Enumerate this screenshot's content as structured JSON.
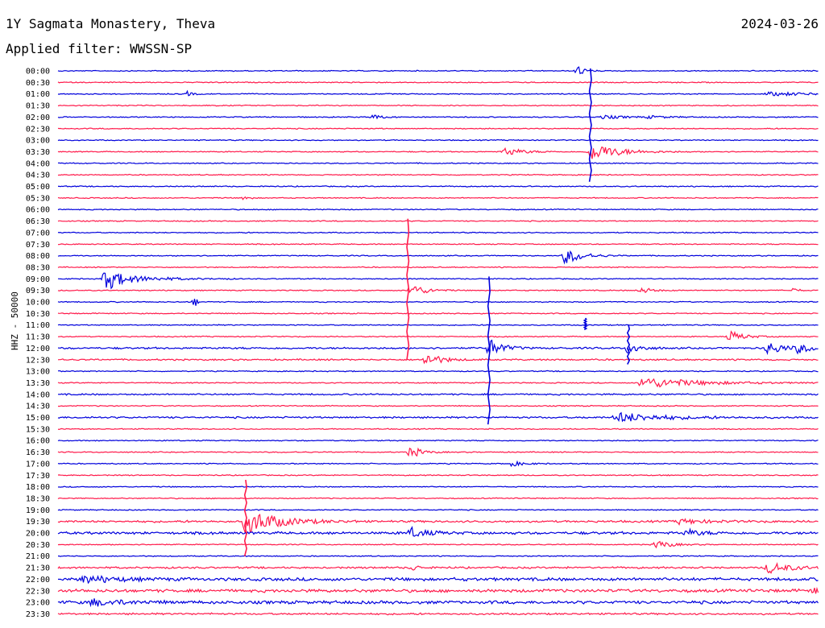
{
  "header": {
    "station": "1Y Sagmata Monastery, Theva",
    "date": "2024-03-26",
    "filter": "Applied filter: WWSSN-SP"
  },
  "y_label": "HHZ - 50000",
  "colors": {
    "odd": "#0000dc",
    "even": "#ff1a4b",
    "text": "#000000"
  },
  "chart_data": {
    "type": "line",
    "title": "1Y Sagmata Monastery, Theva",
    "ylabel": "HHZ - 50000",
    "x_unit": "minutes within 30-min row",
    "rows": [
      "00:00",
      "00:30",
      "01:00",
      "01:30",
      "02:00",
      "02:30",
      "03:00",
      "03:30",
      "04:00",
      "04:30",
      "05:00",
      "05:30",
      "06:00",
      "06:30",
      "07:00",
      "07:30",
      "08:00",
      "08:30",
      "09:00",
      "09:30",
      "10:00",
      "10:30",
      "11:00",
      "11:30",
      "12:00",
      "12:30",
      "13:00",
      "13:30",
      "14:00",
      "14:30",
      "15:00",
      "15:30",
      "16:00",
      "16:30",
      "17:00",
      "17:30",
      "18:00",
      "18:30",
      "19:00",
      "19:30",
      "20:00",
      "20:30",
      "21:00",
      "21:30",
      "22:00",
      "22:30",
      "23:00",
      "23:30"
    ],
    "events": [
      {
        "row": "00:00",
        "t": 20.5,
        "amp": 1.2,
        "dur": 0.2
      },
      {
        "row": "01:00",
        "t": 5.1,
        "amp": 0.4,
        "dur": 0.2
      },
      {
        "row": "01:00",
        "t": 28.0,
        "amp": 0.3,
        "dur": 2.0
      },
      {
        "row": "02:00",
        "t": 12.4,
        "amp": 0.4,
        "dur": 0.4
      },
      {
        "row": "02:00",
        "t": 21.5,
        "amp": 0.3,
        "dur": 0.8
      },
      {
        "row": "02:00",
        "t": 23.3,
        "amp": 0.2,
        "dur": 0.8
      },
      {
        "row": "03:30",
        "t": 17.6,
        "amp": 0.8,
        "dur": 0.6
      },
      {
        "row": "03:30",
        "t": 21.0,
        "amp": 1.6,
        "dur": 1.0
      },
      {
        "row": "05:30",
        "t": 7.3,
        "amp": 0.4,
        "dur": 0.2
      },
      {
        "row": "08:00",
        "t": 20.0,
        "amp": 1.5,
        "dur": 0.6
      },
      {
        "row": "09:00",
        "t": 1.8,
        "amp": 1.3,
        "dur": 1.3
      },
      {
        "row": "09:00",
        "t": 2.0,
        "amp": 1.0,
        "dur": 0.2
      },
      {
        "row": "09:30",
        "t": 13.9,
        "amp": 1.3,
        "dur": 0.5
      },
      {
        "row": "09:30",
        "t": 23.0,
        "amp": 0.6,
        "dur": 0.4
      },
      {
        "row": "09:30",
        "t": 29.0,
        "amp": 0.4,
        "dur": 0.2
      },
      {
        "row": "10:00",
        "t": 5.4,
        "amp": 1.0,
        "dur": 0.1
      },
      {
        "row": "11:30",
        "t": 26.5,
        "amp": 1.0,
        "dur": 0.5
      },
      {
        "row": "12:00",
        "t": 17.0,
        "amp": 1.6,
        "dur": 0.5
      },
      {
        "row": "12:00",
        "t": 22.5,
        "amp": 1.2,
        "dur": 0.4
      },
      {
        "row": "12:00",
        "t": 28.0,
        "amp": 1.2,
        "dur": 0.6
      },
      {
        "row": "12:00",
        "t": 29.2,
        "amp": 0.8,
        "dur": 0.4
      },
      {
        "row": "12:30",
        "t": 14.5,
        "amp": 1.1,
        "dur": 0.6
      },
      {
        "row": "13:30",
        "t": 23.0,
        "amp": 1.0,
        "dur": 2.0
      },
      {
        "row": "15:00",
        "t": 22.0,
        "amp": 0.9,
        "dur": 1.6
      },
      {
        "row": "16:30",
        "t": 13.9,
        "amp": 1.1,
        "dur": 0.4
      },
      {
        "row": "17:00",
        "t": 17.9,
        "amp": 0.4,
        "dur": 0.5
      },
      {
        "row": "19:30",
        "t": 7.4,
        "amp": 2.2,
        "dur": 1.2
      },
      {
        "row": "19:30",
        "t": 24.5,
        "amp": 0.4,
        "dur": 1.0
      },
      {
        "row": "20:00",
        "t": 13.9,
        "amp": 0.9,
        "dur": 0.6
      },
      {
        "row": "20:00",
        "t": 24.8,
        "amp": 0.6,
        "dur": 0.5
      },
      {
        "row": "20:30",
        "t": 23.6,
        "amp": 0.8,
        "dur": 0.5
      },
      {
        "row": "21:30",
        "t": 14.0,
        "amp": 0.6,
        "dur": 0.2
      },
      {
        "row": "21:30",
        "t": 28.0,
        "amp": 1.0,
        "dur": 0.8
      },
      {
        "row": "22:00",
        "t": 1.0,
        "amp": 0.6,
        "dur": 1.2
      },
      {
        "row": "22:30",
        "t": 29.8,
        "amp": 0.6,
        "dur": 0.4
      },
      {
        "row": "23:00",
        "t": 1.3,
        "amp": 0.6,
        "dur": 1.2
      }
    ],
    "spikes": [
      {
        "row": "03:00",
        "t": 21.0,
        "rows_up": 6.2,
        "rows_down": 3.6
      },
      {
        "row": "09:30",
        "t": 13.8,
        "rows_up": 6.2,
        "rows_down": 6.0
      },
      {
        "row": "12:00",
        "t": 17.0,
        "rows_up": 6.2,
        "rows_down": 6.6
      },
      {
        "row": "19:30",
        "t": 7.4,
        "rows_up": 3.6,
        "rows_down": 3.0
      },
      {
        "row": "12:00",
        "t": 22.5,
        "rows_up": 2.0,
        "rows_down": 1.4
      },
      {
        "row": "11:00",
        "t": 20.8,
        "rows_up": 0.6,
        "rows_down": 0.4
      }
    ],
    "noise": {
      "default": 0.08,
      "rows": {
        "12:00": 0.14,
        "12:30": 0.12,
        "14:00": 0.12,
        "15:00": 0.14,
        "19:30": 0.16,
        "20:00": 0.2,
        "21:30": 0.14,
        "22:00": 0.24,
        "22:30": 0.24,
        "23:00": 0.24,
        "23:30": 0.14
      }
    }
  }
}
